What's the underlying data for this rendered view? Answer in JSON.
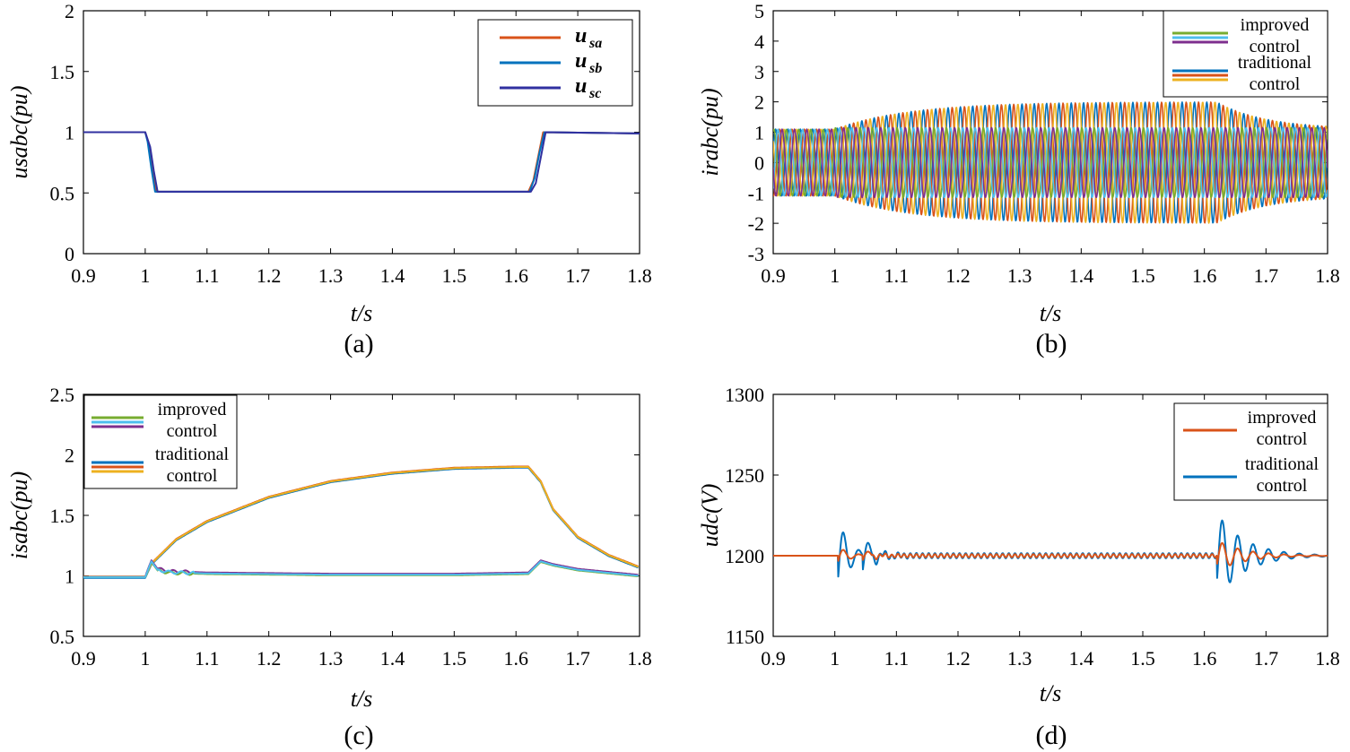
{
  "colors": {
    "orange_red": "#d95319",
    "blue": "#0072bd",
    "purple": "#7e2f8e",
    "green": "#77ac30",
    "yellow": "#edb120",
    "light_blue": "#4dbeee",
    "dark_blue": "#3030a0"
  },
  "chart_data": [
    {
      "id": "a",
      "type": "line",
      "caption": "(a)",
      "xlabel": "t/s",
      "ylabel": "usabc(pu)",
      "xlim": [
        0.9,
        1.8
      ],
      "ylim": [
        0,
        2
      ],
      "xticks": [
        "0.9",
        "1",
        "1.1",
        "1.2",
        "1.3",
        "1.4",
        "1.5",
        "1.6",
        "1.7",
        "1.8"
      ],
      "yticks": [
        "0",
        "0.5",
        "1",
        "1.5",
        "2"
      ],
      "legend_position": "top-right",
      "legend": [
        {
          "main": "u",
          "sub": "sa",
          "color": "#d95319"
        },
        {
          "main": "u",
          "sub": "sb",
          "color": "#0072bd"
        },
        {
          "main": "u",
          "sub": "sc",
          "color": "#3030a0"
        }
      ],
      "series": [
        {
          "name": "usa",
          "color": "#d95319",
          "x": [
            0.9,
            1.0,
            1.006,
            1.012,
            1.018,
            1.62,
            1.628,
            1.636,
            1.644,
            1.8
          ],
          "y": [
            1.0,
            1.0,
            0.9,
            0.72,
            0.51,
            0.51,
            0.6,
            0.8,
            1.0,
            0.99
          ]
        },
        {
          "name": "usb",
          "color": "#0072bd",
          "x": [
            0.9,
            1.0,
            1.004,
            1.01,
            1.016,
            1.622,
            1.63,
            1.638,
            1.646,
            1.8
          ],
          "y": [
            1.0,
            1.0,
            0.92,
            0.7,
            0.51,
            0.51,
            0.62,
            0.83,
            1.0,
            0.99
          ]
        },
        {
          "name": "usc",
          "color": "#3030a0",
          "x": [
            0.9,
            1.0,
            1.008,
            1.014,
            1.02,
            1.624,
            1.632,
            1.64,
            1.648,
            1.8
          ],
          "y": [
            1.0,
            1.0,
            0.88,
            0.68,
            0.51,
            0.51,
            0.58,
            0.79,
            1.0,
            0.99
          ]
        }
      ]
    },
    {
      "id": "b",
      "type": "line",
      "caption": "(b)",
      "xlabel": "t/s",
      "ylabel": "irabc(pu)",
      "xlim": [
        0.9,
        1.8
      ],
      "ylim": [
        -3,
        5
      ],
      "xticks": [
        "0.9",
        "1",
        "1.1",
        "1.2",
        "1.3",
        "1.4",
        "1.5",
        "1.6",
        "1.7",
        "1.8"
      ],
      "yticks": [
        "-3",
        "-2",
        "-1",
        "0",
        "1",
        "2",
        "3",
        "4",
        "5"
      ],
      "legend_position": "top-right",
      "legend": [
        {
          "label_lines": [
            "improved",
            "control"
          ],
          "colors": [
            "#77ac30",
            "#4dbeee",
            "#7e2f8e"
          ]
        },
        {
          "label_lines": [
            "traditional",
            "control"
          ],
          "colors": [
            "#0072bd",
            "#d95319",
            "#edb120"
          ]
        }
      ],
      "waveform": {
        "frequency_hz": 50,
        "pre_fault_amplitude": 1.1,
        "traditional_peak_amplitude": 2.0,
        "improved_amplitude": 1.15,
        "fault_start": 1.0,
        "fault_end": 1.62
      },
      "series": [
        {
          "name": "traditional phase a",
          "color": "#0072bd"
        },
        {
          "name": "traditional phase b",
          "color": "#d95319"
        },
        {
          "name": "traditional phase c",
          "color": "#edb120"
        },
        {
          "name": "improved phase a",
          "color": "#77ac30"
        },
        {
          "name": "improved phase b",
          "color": "#4dbeee"
        },
        {
          "name": "improved phase c",
          "color": "#7e2f8e"
        }
      ]
    },
    {
      "id": "c",
      "type": "line",
      "caption": "(c)",
      "xlabel": "t/s",
      "ylabel": "isabc(pu)",
      "xlim": [
        0.9,
        1.8
      ],
      "ylim": [
        0.5,
        2.5
      ],
      "xticks": [
        "0.9",
        "1",
        "1.1",
        "1.2",
        "1.3",
        "1.4",
        "1.5",
        "1.6",
        "1.7",
        "1.8"
      ],
      "yticks": [
        "0.5",
        "1",
        "1.5",
        "2",
        "2.5"
      ],
      "legend_position": "top-left",
      "legend": [
        {
          "label_lines": [
            "improved",
            "control"
          ],
          "colors": [
            "#77ac30",
            "#4dbeee",
            "#7e2f8e"
          ]
        },
        {
          "label_lines": [
            "traditional",
            "control"
          ],
          "colors": [
            "#0072bd",
            "#d95319",
            "#edb120"
          ]
        }
      ],
      "series": [
        {
          "name": "traditional",
          "color": "#edb120",
          "x": [
            0.9,
            1.0,
            1.01,
            1.05,
            1.1,
            1.2,
            1.3,
            1.4,
            1.5,
            1.6,
            1.62,
            1.64,
            1.66,
            1.7,
            1.75,
            1.8
          ],
          "y": [
            0.99,
            0.99,
            1.1,
            1.3,
            1.45,
            1.65,
            1.78,
            1.85,
            1.89,
            1.9,
            1.9,
            1.78,
            1.55,
            1.32,
            1.17,
            1.07
          ]
        },
        {
          "name": "improved",
          "color": "#4dbeee",
          "x": [
            0.9,
            1.0,
            1.01,
            1.02,
            1.04,
            1.1,
            1.3,
            1.5,
            1.62,
            1.64,
            1.66,
            1.7,
            1.8
          ],
          "y": [
            0.99,
            0.99,
            1.12,
            1.05,
            1.03,
            1.02,
            1.01,
            1.01,
            1.02,
            1.12,
            1.09,
            1.05,
            1.0
          ]
        }
      ]
    },
    {
      "id": "d",
      "type": "line",
      "caption": "(d)",
      "xlabel": "t/s",
      "ylabel": "udc(V)",
      "xlim": [
        0.9,
        1.8
      ],
      "ylim": [
        1150,
        1300
      ],
      "xticks": [
        "0.9",
        "1",
        "1.1",
        "1.2",
        "1.3",
        "1.4",
        "1.5",
        "1.6",
        "1.7",
        "1.8"
      ],
      "yticks": [
        "1150",
        "1200",
        "1250",
        "1300"
      ],
      "legend_position": "top-right",
      "legend": [
        {
          "label_lines": [
            "improved",
            "control"
          ],
          "colors": [
            "#d95319"
          ]
        },
        {
          "label_lines": [
            "traditional",
            "control"
          ],
          "colors": [
            "#0072bd"
          ]
        }
      ],
      "series": [
        {
          "name": "traditional",
          "color": "#0072bd",
          "baseline": 1200,
          "peaks": [
            {
              "t": 1.02,
              "amp": 20
            },
            {
              "t": 1.06,
              "amp": 13
            },
            {
              "t": 1.635,
              "amp": 25
            }
          ],
          "min_after_fault_start": 1189
        },
        {
          "name": "improved",
          "color": "#d95319",
          "baseline": 1200,
          "peaks": [
            {
              "t": 1.02,
              "amp": 5
            },
            {
              "t": 1.06,
              "amp": 4
            },
            {
              "t": 1.635,
              "amp": 9
            }
          ]
        }
      ]
    }
  ]
}
